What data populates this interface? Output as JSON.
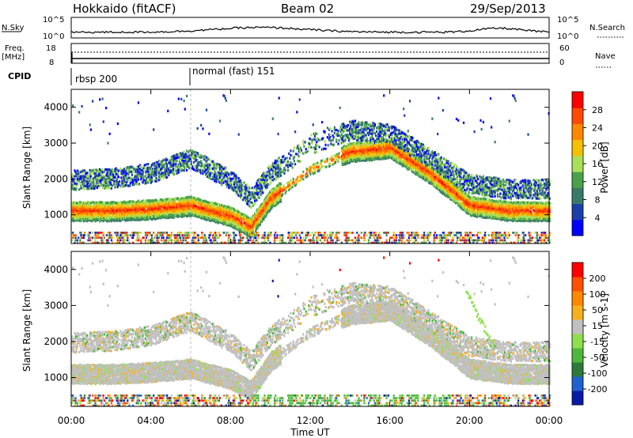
{
  "header": {
    "site": "Hokkaido (fitACF)",
    "beam": "Beam 02",
    "date": "29/Sep/2013"
  },
  "summary_panels": {
    "nsky_label": "N.Sky",
    "nsky_ticks": [
      "10^5",
      "10^0"
    ],
    "nsearch_label": "N.Search",
    "freq_label": "Freq.",
    "freq_unit": "[MHz]",
    "freq_ticks": [
      "18",
      "8"
    ],
    "nave_label": "Nave",
    "nave_ticks": [
      "60",
      "0"
    ],
    "cpid_label": "CPID",
    "cpid_segments": [
      "rbsp 200",
      "normal (fast) 151"
    ]
  },
  "x_axis": {
    "ticks": [
      "00:00",
      "04:00",
      "08:00",
      "12:00",
      "16:00",
      "20:00",
      "00:00"
    ],
    "label": "Time UT"
  },
  "power_panel": {
    "ylabel": "Slant Range [km]",
    "yticks": [
      "4000",
      "3000",
      "2000",
      "1000"
    ],
    "colorbar_label": "Power [dB]",
    "colorbar_ticks": [
      "28",
      "24",
      "20",
      "16",
      "12",
      "8",
      "4"
    ],
    "colors": [
      "#0000ff",
      "#1a3fa8",
      "#3a7a6a",
      "#49a24a",
      "#a8e05a",
      "#f5c000",
      "#ff8800",
      "#ff4a00",
      "#ff0000"
    ]
  },
  "velocity_panel": {
    "ylabel": "Slant Range [km]",
    "yticks": [
      "4000",
      "3000",
      "2000",
      "1000"
    ],
    "colorbar_label": "Velocity [m s-1]",
    "colorbar_ticks": [
      "200",
      "100",
      "50",
      "15",
      "-15",
      "-50",
      "-100",
      "-200"
    ],
    "colors": [
      "#0a1aa8",
      "#2060d0",
      "#2f7a3a",
      "#4cb83c",
      "#8ee04a",
      "#c0c0c0",
      "#f5b020",
      "#ff8800",
      "#ff5000",
      "#ff0000"
    ]
  },
  "chart_data": [
    {
      "type": "heatmap",
      "title": "Power",
      "xlabel": "Time UT",
      "ylabel": "Slant Range [km]",
      "xlim": [
        "00:00",
        "24:00"
      ],
      "ylim": [
        200,
        4500
      ],
      "colorbar": {
        "label": "Power [dB]",
        "range": [
          0,
          30
        ]
      },
      "bands": [
        {
          "name": "main",
          "x": [
            0,
            2,
            4,
            6,
            8,
            9,
            10,
            12,
            14,
            16,
            18,
            20,
            22,
            24
          ],
          "y": [
            1150,
            1150,
            1200,
            1300,
            1000,
            700,
            1500,
            2300,
            2800,
            2900,
            2200,
            1300,
            1150,
            1150
          ]
        },
        {
          "name": "upper",
          "x": [
            0,
            2,
            4,
            6,
            8,
            9,
            10,
            12,
            14,
            16,
            18,
            20,
            22,
            24
          ],
          "y": [
            2000,
            2050,
            2200,
            2600,
            2000,
            1500,
            2200,
            3000,
            3400,
            3300,
            2600,
            1900,
            1750,
            1750
          ]
        }
      ]
    },
    {
      "type": "heatmap",
      "title": "Velocity",
      "xlabel": "Time UT",
      "ylabel": "Slant Range [km]",
      "xlim": [
        "00:00",
        "24:00"
      ],
      "ylim": [
        200,
        4500
      ],
      "colorbar": {
        "label": "Velocity [m s-1]",
        "range": [
          -250,
          250
        ]
      }
    }
  ]
}
